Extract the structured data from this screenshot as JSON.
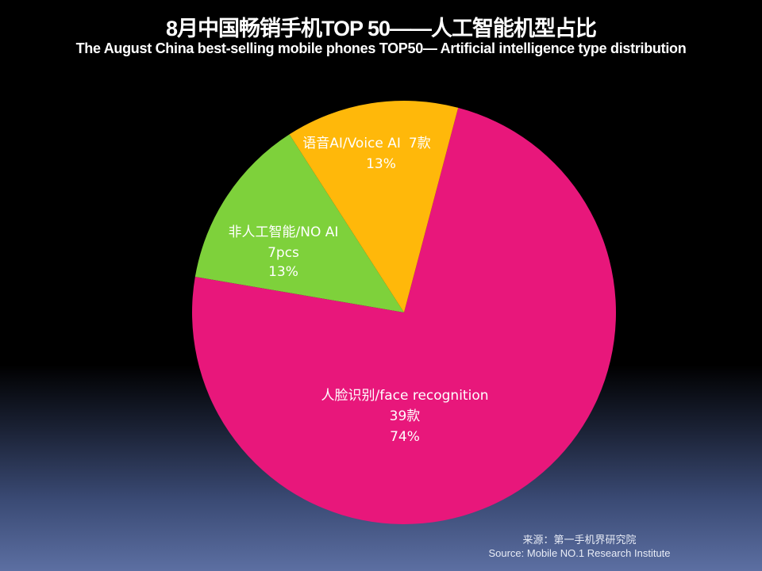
{
  "chart_data": {
    "type": "pie",
    "title": "8月中国畅销手机TOP 50——人工智能机型占比",
    "subtitle": "The  August  China  best-selling  mobile  phones TOP50— Artificial intelligence type distribution",
    "start_angle_deg": 14.8,
    "slices": [
      {
        "name": "人脸识别/face recognition",
        "count_label": "39款",
        "value": 39,
        "percent_label": "74%",
        "color": "#e8177b"
      },
      {
        "name": "非人工智能/NO AI",
        "count_label": "7pcs",
        "value": 7,
        "percent_label": "13%",
        "color": "#7ed13b"
      },
      {
        "name": "语音AI/Voice AI",
        "count_label": "7款",
        "value": 7,
        "percent_label": "13%",
        "color": "#ffb80a"
      }
    ]
  },
  "source": {
    "cn": "来源：第一手机界研究院",
    "en": "Source: Mobile NO.1 Research Institute"
  }
}
